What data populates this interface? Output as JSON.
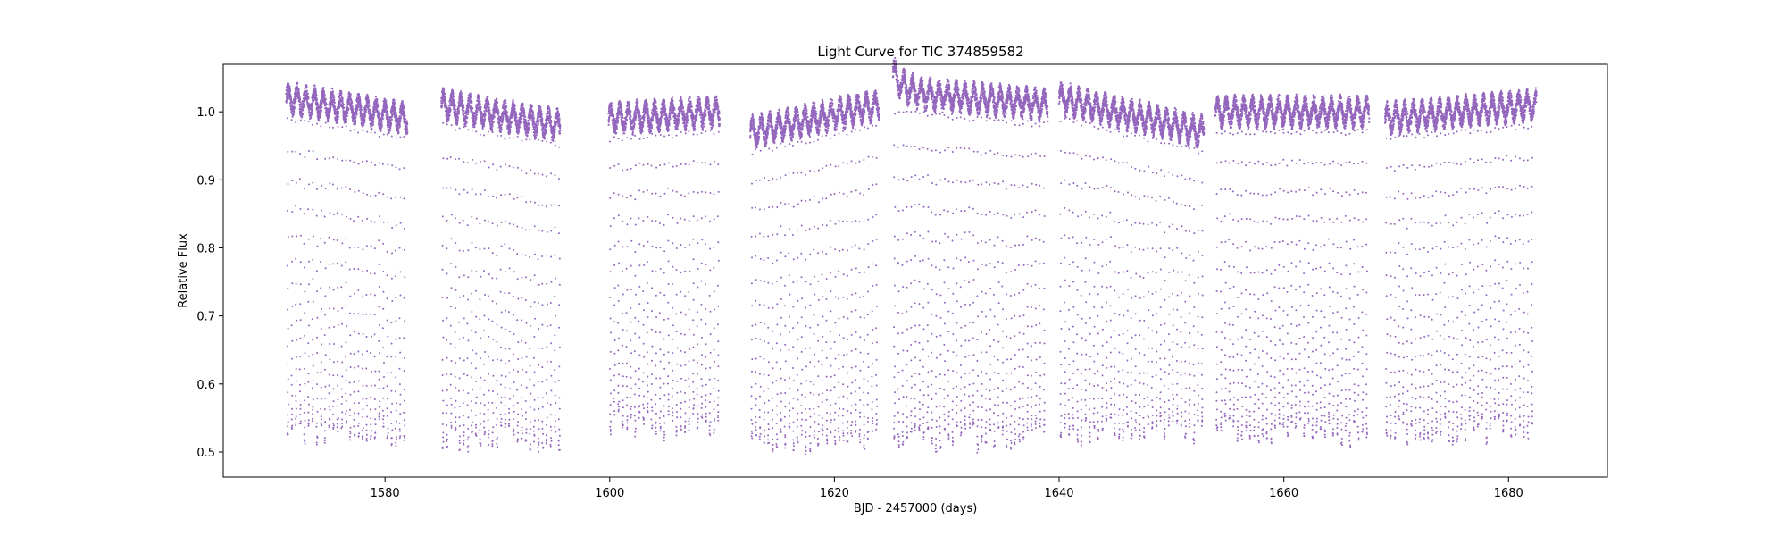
{
  "chart_data": {
    "type": "scatter",
    "title": "Light Curve for TIC 374859582",
    "xlabel": "BJD - 2457000 (days)",
    "ylabel": "Relative Flux",
    "xlim": [
      1565.6,
      1688.8
    ],
    "ylim": [
      0.4632,
      1.0698
    ],
    "xticks": [
      1580,
      1600,
      1620,
      1640,
      1660,
      1680
    ],
    "xtick_labels": [
      "1580",
      "1600",
      "1620",
      "1640",
      "1660",
      "1680"
    ],
    "yticks": [
      0.5,
      0.6,
      0.7,
      0.8,
      0.9,
      1.0
    ],
    "ytick_labels": [
      "0.5",
      "0.6",
      "0.7",
      "0.8",
      "0.9",
      "1.0"
    ],
    "grid": false,
    "legend": "none",
    "marker_color": "#9467bd",
    "segments": [
      {
        "x_start": 1571.2,
        "x_end": 1582.0,
        "baseline_start": 1.02,
        "baseline_end": 0.99,
        "min_flux": 0.51
      },
      {
        "x_start": 1585.0,
        "x_end": 1595.6,
        "baseline_start": 1.01,
        "baseline_end": 0.98,
        "min_flux": 0.5
      },
      {
        "x_start": 1599.9,
        "x_end": 1609.8,
        "baseline_start": 0.99,
        "baseline_end": 1.0,
        "min_flux": 0.52
      },
      {
        "x_start": 1612.5,
        "x_end": 1624.0,
        "baseline_start": 0.97,
        "baseline_end": 1.01,
        "min_flux": 0.5
      },
      {
        "x_start": 1625.2,
        "x_end": 1639.0,
        "baseline_start": 1.03,
        "baseline_end": 1.01,
        "min_flux": 0.5
      },
      {
        "x_start": 1640.0,
        "x_end": 1652.9,
        "baseline_start": 1.02,
        "baseline_end": 0.97,
        "min_flux": 0.51
      },
      {
        "x_start": 1653.9,
        "x_end": 1667.6,
        "baseline_start": 1.0,
        "baseline_end": 1.0,
        "min_flux": 0.51
      },
      {
        "x_start": 1669.0,
        "x_end": 1682.5,
        "baseline_start": 0.99,
        "baseline_end": 1.01,
        "min_flux": 0.51
      }
    ],
    "variability_period_days": 0.78,
    "variability_amplitude": 0.015,
    "dip_spacing_days": 0.37
  }
}
